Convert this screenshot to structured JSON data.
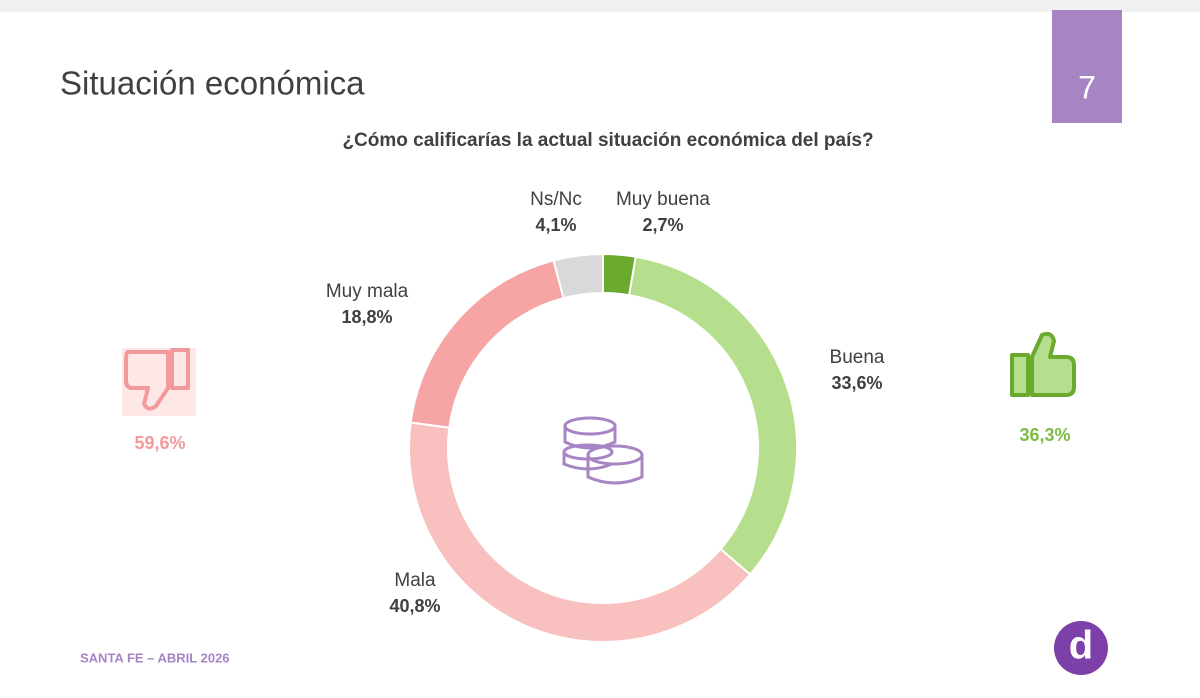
{
  "chart_data": {
    "type": "donut",
    "title": "Situación económica",
    "subtitle": "¿Cómo calificarías la actual situación económica del país?",
    "page_number": "7",
    "footer": "SANTA FE – ABRIL 2026",
    "logo": "d",
    "categories": [
      "Muy buena",
      "Buena",
      "Mala",
      "Muy mala",
      "Ns/Nc"
    ],
    "values": [
      2.7,
      33.6,
      40.8,
      18.8,
      4.1
    ],
    "value_labels": [
      "2,7%",
      "33,6%",
      "40,8%",
      "18,8%",
      "4,1%"
    ],
    "colors": [
      "#6aaa2e",
      "#b5df8c",
      "#f9c0c0",
      "#f6a4a4",
      "#d9d9d9"
    ],
    "negative_total": {
      "value": 59.6,
      "label": "59,6%"
    },
    "positive_total": {
      "value": 36.3,
      "label": "36,3%"
    }
  }
}
